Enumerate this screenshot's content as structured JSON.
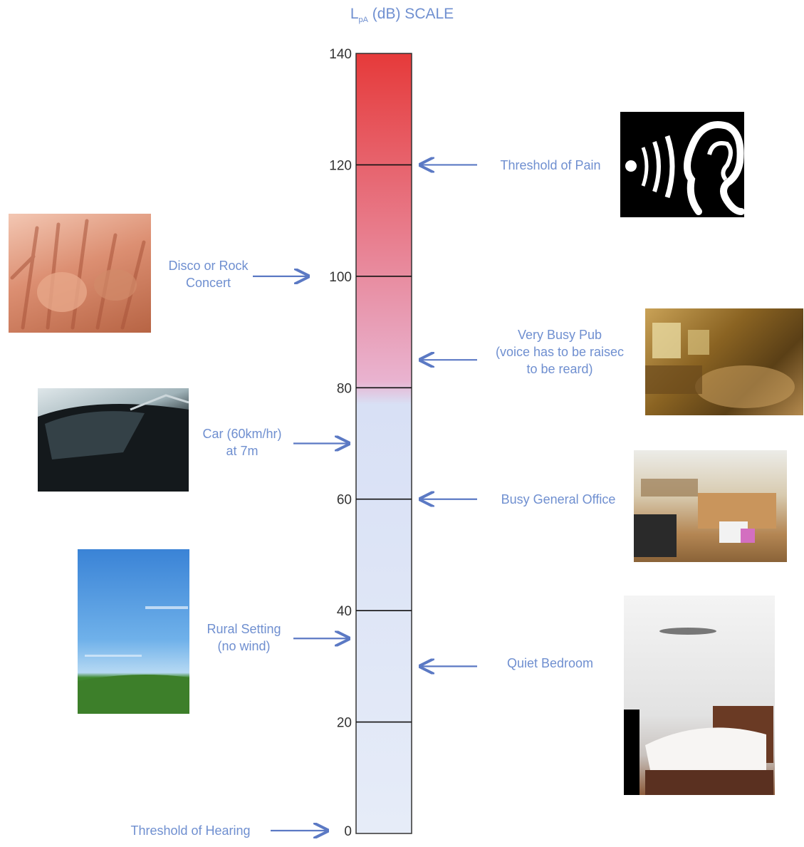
{
  "title": {
    "prefix": "L",
    "subscript": "pA",
    "suffix": " (dB) SCALE"
  },
  "scale": {
    "min": 0,
    "max": 140,
    "ticks": [
      "0",
      "20",
      "40",
      "60",
      "80",
      "100",
      "120",
      "140"
    ],
    "gradient": {
      "top": "#e63a3a",
      "middle": "#e9b3d0",
      "lower": "#d8e0f5",
      "bottom": "#e6ecf8"
    },
    "accent": "#5b79c4"
  },
  "markers": [
    {
      "label_lines": [
        "Threshold of Pain"
      ],
      "level": 120,
      "side": "right",
      "icon": "ear-sound-icon"
    },
    {
      "label_lines": [
        "Disco or Rock",
        "Concert"
      ],
      "level": 100,
      "side": "left",
      "icon": "concert-crowd-photo"
    },
    {
      "label_lines": [
        "Very Busy Pub",
        "(voice has to be raisec",
        "to be reard)"
      ],
      "level": 85,
      "side": "right",
      "icon": "pub-interior-photo"
    },
    {
      "label_lines": [
        "Car (60km/hr)",
        "at 7m"
      ],
      "level": 70,
      "side": "left",
      "icon": "car-photo"
    },
    {
      "label_lines": [
        "Busy General Office"
      ],
      "level": 60,
      "side": "right",
      "icon": "office-photo"
    },
    {
      "label_lines": [
        "Rural Setting",
        "(no wind)"
      ],
      "level": 35,
      "side": "left",
      "icon": "rural-landscape-photo"
    },
    {
      "label_lines": [
        "Quiet Bedroom"
      ],
      "level": 30,
      "side": "right",
      "icon": "bedroom-photo"
    },
    {
      "label_lines": [
        "Threshold of Hearing"
      ],
      "level": 0,
      "side": "left",
      "icon": ""
    }
  ]
}
